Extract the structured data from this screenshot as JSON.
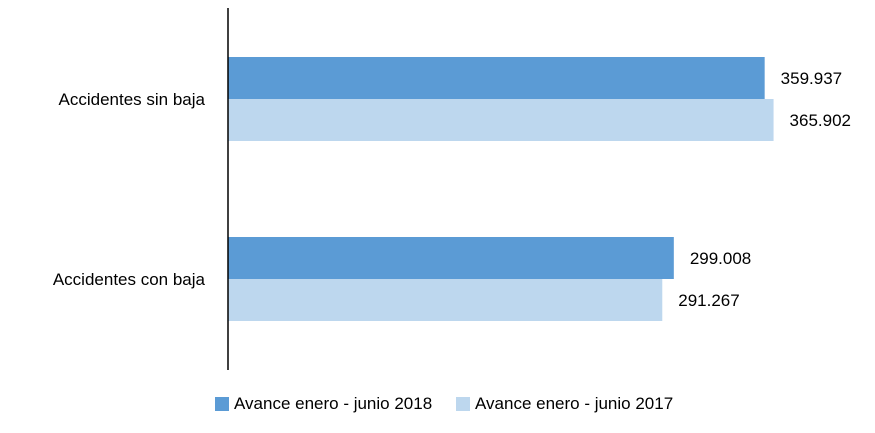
{
  "chart_data": {
    "type": "bar",
    "orientation": "horizontal",
    "categories": [
      "Accidentes sin baja",
      "Accidentes con baja"
    ],
    "series": [
      {
        "name": "Avance enero - junio 2018",
        "color": "#5b9bd5",
        "values": [
          359937,
          299008
        ],
        "labels": [
          "359.937",
          "299.008"
        ]
      },
      {
        "name": "Avance enero - junio 2017",
        "color": "#bdd7ee",
        "values": [
          365902,
          291267
        ],
        "labels": [
          "365.902",
          "291.267"
        ]
      }
    ],
    "xlim": [
      0,
      400000
    ],
    "grid": false,
    "legend": "bottom"
  }
}
